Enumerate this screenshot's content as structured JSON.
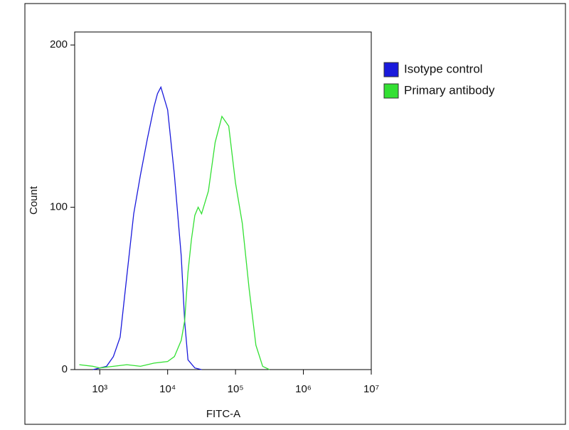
{
  "chart_data": {
    "type": "line",
    "x_label": "FITC-A",
    "y_label": "Count",
    "x_log": true,
    "xlim": [
      427,
      10000000
    ],
    "ylim": [
      0,
      208
    ],
    "xticks": [
      {
        "value": 1000,
        "label": "10³"
      },
      {
        "value": 10000,
        "label": "10⁴"
      },
      {
        "value": 100000,
        "label": "10⁵"
      },
      {
        "value": 1000000,
        "label": "10⁶"
      },
      {
        "value": 10000000,
        "label": "10⁷"
      }
    ],
    "yticks": [
      0,
      100,
      200
    ],
    "legend_position": "outside-right",
    "series": [
      {
        "name": "Isotype control",
        "color": "#1a1adc",
        "x": [
          794,
          1000,
          1259,
          1585,
          1995,
          2512,
          3162,
          3981,
          5012,
          6310,
          7079,
          7943,
          10000,
          12589,
          15849,
          17783,
          19953,
          25119,
          31623
        ],
        "values": [
          0,
          1,
          2,
          8,
          20,
          58,
          96,
          120,
          142,
          162,
          170,
          174,
          160,
          120,
          70,
          30,
          6,
          1,
          0
        ]
      },
      {
        "name": "Primary antibody",
        "color": "#33e033",
        "x": [
          500,
          794,
          1000,
          1585,
          2512,
          3981,
          6310,
          10000,
          12589,
          15849,
          17783,
          19953,
          22387,
          25119,
          28184,
          31623,
          39811,
          50119,
          63096,
          79433,
          100000,
          125893,
          158489,
          199526,
          251189,
          316228
        ],
        "values": [
          3,
          2,
          1,
          2,
          3,
          2,
          4,
          5,
          8,
          18,
          30,
          60,
          80,
          95,
          100,
          96,
          110,
          140,
          156,
          150,
          115,
          90,
          50,
          15,
          2,
          0
        ]
      }
    ]
  }
}
